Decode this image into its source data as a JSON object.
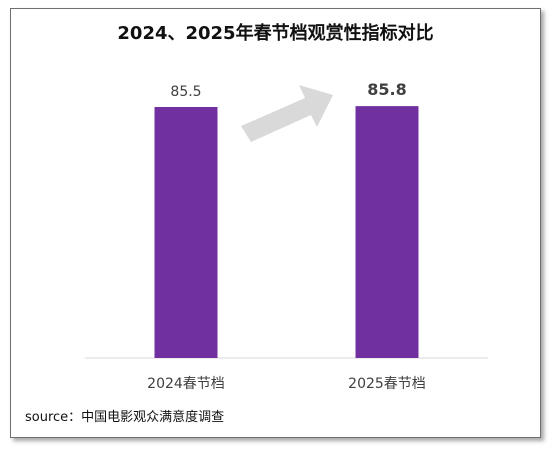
{
  "chart_data": {
    "type": "bar",
    "title": "2024、2025年春节档观赏性指标对比",
    "categories": [
      "2024春节档",
      "2025春节档"
    ],
    "values": [
      85.5,
      85.8
    ],
    "value_labels": [
      "85.5",
      "85.8"
    ],
    "emphasized_value_index": 1,
    "xlabel": "",
    "ylabel": "",
    "grid": false,
    "legend": "none",
    "colors": {
      "bar": "#7030a0",
      "arrow": "#d9d9d9",
      "axis": "#d9d9d9",
      "text": "#404040"
    },
    "annotation": "up-right-arrow"
  },
  "source": "source：中国电影观众满意度调查"
}
